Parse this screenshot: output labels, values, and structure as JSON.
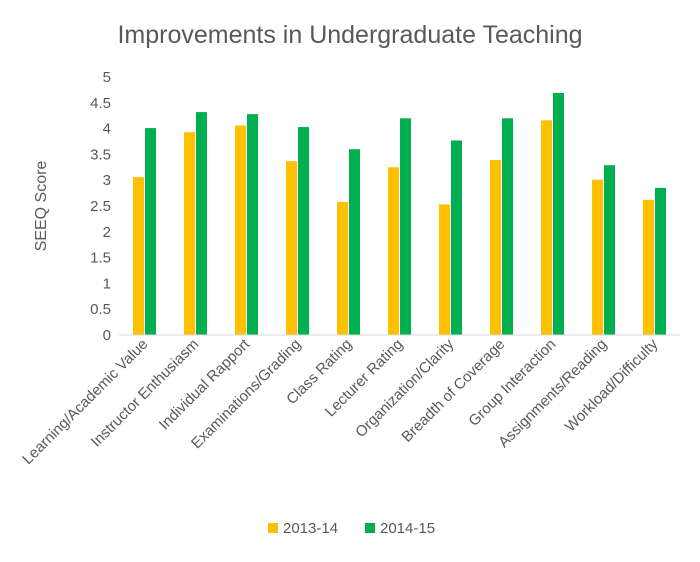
{
  "chart_data": {
    "type": "bar",
    "title": "Improvements in Undergraduate Teaching",
    "xlabel": "",
    "ylabel": "SEEQ Score",
    "ylim": [
      0,
      5
    ],
    "yticks": [
      "0",
      "0.5",
      "1",
      "1.5",
      "2",
      "2.5",
      "3",
      "3.5",
      "4",
      "4.5",
      "5"
    ],
    "grid": false,
    "legend_position": "bottom",
    "categories": [
      "Learning/Academic Value",
      "Instructor Enthusiasm",
      "Individual Rapport",
      "Examinations/Grading",
      "Class Rating",
      "Lecturer Rating",
      "Organization/Clarity",
      "Breadth of Coverage",
      "Group Interaction",
      "Assignments/Reading",
      "Workload/Difficulty"
    ],
    "series": [
      {
        "name": "2013-14",
        "color": "#FFC000",
        "values": [
          3.06,
          3.93,
          4.06,
          3.37,
          2.58,
          3.25,
          2.53,
          3.39,
          4.16,
          3.01,
          2.62
        ]
      },
      {
        "name": "2014-15",
        "color": "#00B050",
        "values": [
          4.01,
          4.32,
          4.28,
          4.03,
          3.6,
          4.2,
          3.77,
          4.2,
          4.69,
          3.29,
          2.85
        ]
      }
    ]
  }
}
